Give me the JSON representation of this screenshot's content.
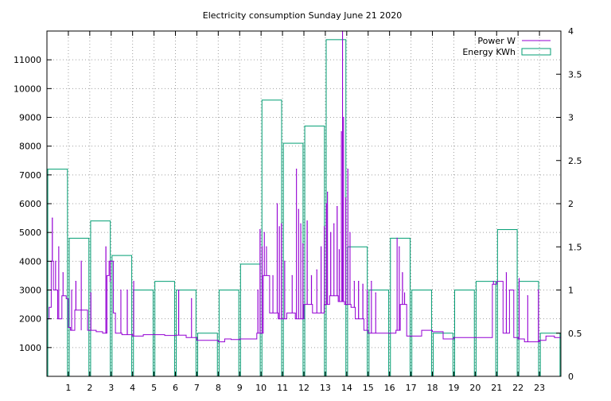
{
  "chart_data": {
    "type": "line",
    "title": "Electricity consumption Sunday June 21 2020",
    "xlim": [
      0,
      24
    ],
    "x_ticks": [
      1,
      2,
      3,
      4,
      5,
      6,
      7,
      8,
      9,
      10,
      11,
      12,
      13,
      14,
      15,
      16,
      17,
      18,
      19,
      20,
      21,
      22,
      23
    ],
    "y_left": {
      "lim": [
        0,
        12000
      ],
      "ticks": [
        1000,
        2000,
        3000,
        4000,
        5000,
        6000,
        7000,
        8000,
        9000,
        10000,
        11000
      ]
    },
    "y_right": {
      "lim": [
        0,
        4
      ],
      "ticks": [
        0,
        0.5,
        1,
        1.5,
        2,
        2.5,
        3,
        3.5,
        4
      ]
    },
    "grid": true,
    "legend_position": "top-right",
    "colors": {
      "power": "#9400d3",
      "energy": "#009e73"
    },
    "series": [
      {
        "name": "Power W",
        "axis": "left",
        "style": "line",
        "baseline": [
          [
            0,
            2000
          ],
          [
            0.1,
            2400
          ],
          [
            0.2,
            4000
          ],
          [
            0.3,
            3000
          ],
          [
            0.5,
            2000
          ],
          [
            0.7,
            2800
          ],
          [
            0.9,
            2700
          ],
          [
            1.0,
            1700
          ],
          [
            1.1,
            1600
          ],
          [
            1.3,
            2300
          ],
          [
            1.6,
            1600
          ],
          [
            1.9,
            1600
          ],
          [
            2.1,
            1600
          ],
          [
            2.3,
            1550
          ],
          [
            2.6,
            1500
          ],
          [
            2.8,
            3500
          ],
          [
            2.9,
            4000
          ],
          [
            3.1,
            2200
          ],
          [
            3.2,
            1500
          ],
          [
            3.5,
            1450
          ],
          [
            4.0,
            1400
          ],
          [
            4.5,
            1450
          ],
          [
            5.0,
            1450
          ],
          [
            5.5,
            1420
          ],
          [
            6.0,
            1430
          ],
          [
            6.5,
            1350
          ],
          [
            7.0,
            1250
          ],
          [
            7.5,
            1250
          ],
          [
            8.0,
            1200
          ],
          [
            8.3,
            1300
          ],
          [
            8.6,
            1280
          ],
          [
            9.0,
            1300
          ],
          [
            9.5,
            1300
          ],
          [
            9.8,
            1500
          ],
          [
            10.1,
            3500
          ],
          [
            10.4,
            2200
          ],
          [
            10.8,
            2000
          ],
          [
            11.2,
            2200
          ],
          [
            11.6,
            2000
          ],
          [
            12.0,
            2500
          ],
          [
            12.4,
            2200
          ],
          [
            12.8,
            2500
          ],
          [
            13.2,
            2800
          ],
          [
            13.6,
            2600
          ],
          [
            13.9,
            2500
          ],
          [
            14.2,
            2400
          ],
          [
            14.4,
            2000
          ],
          [
            14.8,
            1600
          ],
          [
            15.0,
            1500
          ],
          [
            15.5,
            1500
          ],
          [
            16.0,
            1500
          ],
          [
            16.3,
            1600
          ],
          [
            16.5,
            2500
          ],
          [
            16.8,
            1400
          ],
          [
            17.0,
            1400
          ],
          [
            17.5,
            1600
          ],
          [
            18.0,
            1550
          ],
          [
            18.5,
            1300
          ],
          [
            19.0,
            1350
          ],
          [
            19.5,
            1350
          ],
          [
            20.0,
            1350
          ],
          [
            20.5,
            1350
          ],
          [
            20.8,
            3200
          ],
          [
            21.0,
            3300
          ],
          [
            21.3,
            1500
          ],
          [
            21.6,
            3000
          ],
          [
            21.8,
            1350
          ],
          [
            22.0,
            1300
          ],
          [
            22.3,
            1200
          ],
          [
            22.7,
            1200
          ],
          [
            23.0,
            1250
          ],
          [
            23.3,
            1400
          ],
          [
            23.7,
            1350
          ],
          [
            24.0,
            1300
          ]
        ],
        "spikes": [
          [
            0.25,
            5500
          ],
          [
            0.4,
            4000
          ],
          [
            0.55,
            4500
          ],
          [
            0.75,
            3600
          ],
          [
            1.15,
            3000
          ],
          [
            1.35,
            3300
          ],
          [
            1.6,
            4000
          ],
          [
            2.05,
            2900
          ],
          [
            2.75,
            4500
          ],
          [
            2.95,
            3300
          ],
          [
            3.45,
            3000
          ],
          [
            3.75,
            3000
          ],
          [
            4.05,
            3300
          ],
          [
            6.15,
            3000
          ],
          [
            6.75,
            2700
          ],
          [
            9.85,
            3000
          ],
          [
            9.95,
            5100
          ],
          [
            10.05,
            4500
          ],
          [
            10.15,
            5000
          ],
          [
            10.25,
            4500
          ],
          [
            10.55,
            3500
          ],
          [
            10.75,
            6000
          ],
          [
            10.85,
            5200
          ],
          [
            10.95,
            5300
          ],
          [
            11.1,
            4000
          ],
          [
            11.45,
            3500
          ],
          [
            11.65,
            7200
          ],
          [
            11.75,
            5800
          ],
          [
            11.85,
            5300
          ],
          [
            11.95,
            4600
          ],
          [
            12.15,
            5400
          ],
          [
            12.35,
            3500
          ],
          [
            12.6,
            3700
          ],
          [
            12.8,
            4500
          ],
          [
            12.95,
            5200
          ],
          [
            13.05,
            6000
          ],
          [
            13.1,
            6400
          ],
          [
            13.25,
            5000
          ],
          [
            13.4,
            5300
          ],
          [
            13.55,
            5900
          ],
          [
            13.65,
            4400
          ],
          [
            13.75,
            8500
          ],
          [
            13.8,
            12000
          ],
          [
            13.85,
            9000
          ],
          [
            13.95,
            6200
          ],
          [
            14.05,
            7200
          ],
          [
            14.15,
            5000
          ],
          [
            14.35,
            3300
          ],
          [
            14.55,
            3300
          ],
          [
            14.75,
            3200
          ],
          [
            14.95,
            3000
          ],
          [
            15.15,
            3300
          ],
          [
            15.35,
            2900
          ],
          [
            16.35,
            4800
          ],
          [
            16.45,
            4500
          ],
          [
            16.6,
            3600
          ],
          [
            16.7,
            2900
          ],
          [
            20.85,
            3300
          ],
          [
            21.45,
            3600
          ],
          [
            22.05,
            3400
          ],
          [
            22.45,
            2800
          ],
          [
            22.95,
            3000
          ]
        ]
      },
      {
        "name": "Energy KWh",
        "axis": "right",
        "style": "steps",
        "values": [
          2.4,
          1.6,
          1.8,
          1.4,
          1.0,
          1.1,
          1.0,
          0.5,
          1.0,
          1.3,
          3.2,
          2.7,
          2.9,
          3.9,
          1.5,
          1.0,
          1.6,
          1.0,
          0.5,
          1.0,
          1.1,
          1.7,
          1.1,
          0.5
        ]
      }
    ]
  }
}
